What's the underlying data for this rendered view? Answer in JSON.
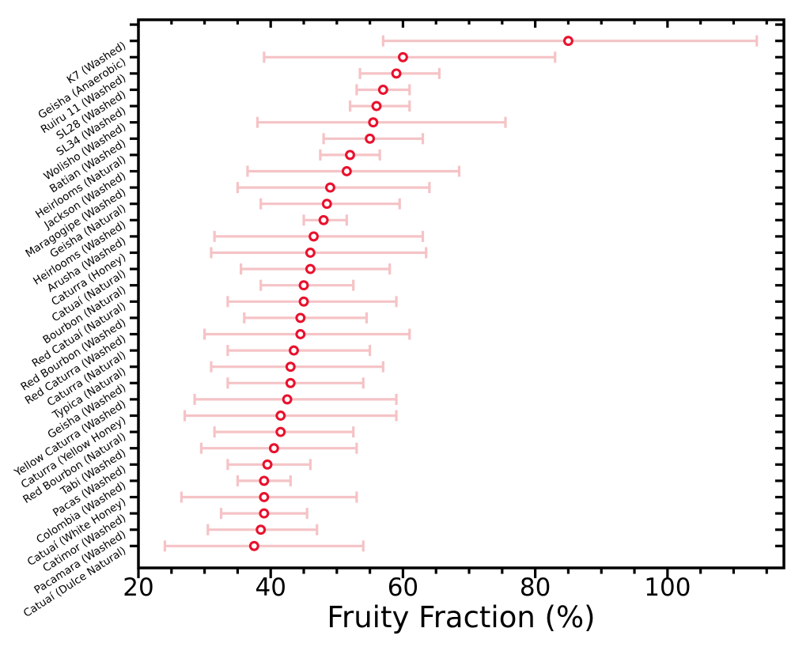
{
  "figure": {
    "background": "#ffffff"
  },
  "chart_data": {
    "type": "scatter",
    "subtype": "horizontal-errorbar",
    "title": "",
    "xlabel": "Fruity Fraction (%)",
    "ylabel": "",
    "xlim": [
      20,
      117.6
    ],
    "x_major_ticks": [
      20,
      40,
      60,
      80,
      100
    ],
    "x_minor_tick_step": 5,
    "grid": false,
    "legend": "none",
    "colors": {
      "marker_edge": "#e8112d",
      "marker_fill": "#ffffff",
      "error_bar": "#f5c3c6",
      "axis": "#000000",
      "text": "#000000"
    },
    "points": [
      {
        "label": "K7 (Washed)",
        "value": 85.0,
        "low": 57.0,
        "high": 113.5
      },
      {
        "label": "Geisha (Anaerobic)",
        "value": 60.0,
        "low": 39.0,
        "high": 83.0
      },
      {
        "label": "Ruiru 11 (Washed)",
        "value": 59.0,
        "low": 53.5,
        "high": 65.5
      },
      {
        "label": "SL28 (Washed)",
        "value": 57.0,
        "low": 53.0,
        "high": 61.0
      },
      {
        "label": "SL34 (Washed)",
        "value": 56.0,
        "low": 52.0,
        "high": 61.0
      },
      {
        "label": "Wolisho (Washed)",
        "value": 55.5,
        "low": 38.0,
        "high": 75.5
      },
      {
        "label": "Batian (Washed)",
        "value": 55.0,
        "low": 48.0,
        "high": 63.0
      },
      {
        "label": "Heirlooms (Natural)",
        "value": 52.0,
        "low": 47.5,
        "high": 56.5
      },
      {
        "label": "Jackson (Washed)",
        "value": 51.5,
        "low": 36.5,
        "high": 68.5
      },
      {
        "label": "Maragogipe (Washed)",
        "value": 49.0,
        "low": 35.0,
        "high": 64.0
      },
      {
        "label": "Geisha (Natural)",
        "value": 48.5,
        "low": 38.5,
        "high": 59.5
      },
      {
        "label": "Heirlooms (Washed)",
        "value": 48.0,
        "low": 45.0,
        "high": 51.5
      },
      {
        "label": "Arusha (Washed)",
        "value": 46.5,
        "low": 31.5,
        "high": 63.0
      },
      {
        "label": "Caturra (Honey)",
        "value": 46.0,
        "low": 31.0,
        "high": 63.5
      },
      {
        "label": "Catuaí (Natural)",
        "value": 46.0,
        "low": 35.5,
        "high": 58.0
      },
      {
        "label": "Bourbon (Natural)",
        "value": 45.0,
        "low": 38.5,
        "high": 52.5
      },
      {
        "label": "Red Catuaí (Natural)",
        "value": 45.0,
        "low": 33.5,
        "high": 59.0
      },
      {
        "label": "Red Bourbon (Washed)",
        "value": 44.5,
        "low": 36.0,
        "high": 54.5
      },
      {
        "label": "Red Caturra (Washed)",
        "value": 44.5,
        "low": 30.0,
        "high": 61.0
      },
      {
        "label": "Caturra (Natural)",
        "value": 43.5,
        "low": 33.5,
        "high": 55.0
      },
      {
        "label": "Typica (Natural)",
        "value": 43.0,
        "low": 31.0,
        "high": 57.0
      },
      {
        "label": "Geisha (Washed)",
        "value": 43.0,
        "low": 33.5,
        "high": 54.0
      },
      {
        "label": "Yellow Caturra (Washed)",
        "value": 42.5,
        "low": 28.5,
        "high": 59.0
      },
      {
        "label": "Caturra (Yellow Honey)",
        "value": 41.5,
        "low": 27.0,
        "high": 59.0
      },
      {
        "label": "Red Bourbon (Natural)",
        "value": 41.5,
        "low": 31.5,
        "high": 52.5
      },
      {
        "label": "Tabi (Washed)",
        "value": 40.5,
        "low": 29.5,
        "high": 53.0
      },
      {
        "label": "Pacas (Washed)",
        "value": 39.5,
        "low": 33.5,
        "high": 46.0
      },
      {
        "label": "Colombia (Washed)",
        "value": 39.0,
        "low": 35.0,
        "high": 43.0
      },
      {
        "label": "Catuaí (White Honey)",
        "value": 39.0,
        "low": 26.5,
        "high": 53.0
      },
      {
        "label": "Catimor (Washed)",
        "value": 39.0,
        "low": 32.5,
        "high": 45.5
      },
      {
        "label": "Pacamara (Washed)",
        "value": 38.5,
        "low": 30.5,
        "high": 47.0
      },
      {
        "label": "Catuaí (Dulce Natural)",
        "value": 37.5,
        "low": 24.0,
        "high": 54.0
      }
    ]
  }
}
